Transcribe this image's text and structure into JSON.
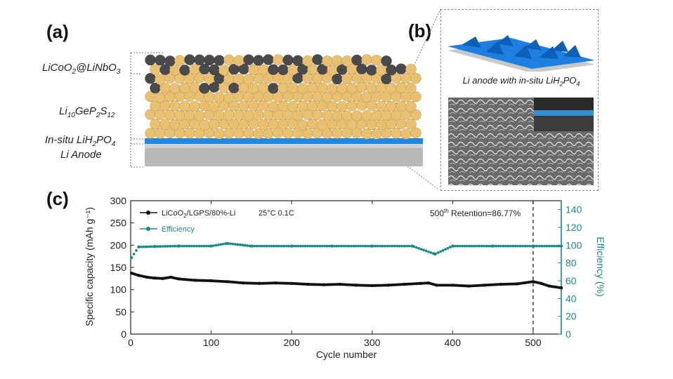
{
  "panels": {
    "a": "(a)",
    "b": "(b)",
    "c": "(c)"
  },
  "schematic_a": {
    "layers": [
      {
        "main": "LiCoO",
        "sub": "2",
        "rest": "@LiNbO",
        "sub2": "3"
      },
      {
        "main": "Li",
        "sub": "10",
        "rest": "GeP",
        "sub2": "2",
        "rest2": "S",
        "sub3": "12"
      },
      {
        "main": "In-situ LiH",
        "sub": "2",
        "rest": "PO",
        "sub2": "4"
      },
      {
        "main": "Li Anode"
      }
    ],
    "colors": {
      "cathode": "#4a4a4a",
      "electrolyte": "#e8c070",
      "interlayer": "#1e88e5",
      "anode": "#b8b8b8"
    }
  },
  "schematic_b": {
    "caption_main": "Li anode with in-situ LiH",
    "caption_sub": "2",
    "caption_rest": "PO",
    "caption_sub2": "4"
  },
  "chart_data": {
    "type": "scatter",
    "title": "",
    "xlabel": "Cycle number",
    "ylabel": "Specific capacity (mAh g⁻¹)",
    "ylabel_right": "Efficiency (%)",
    "xlim": [
      0,
      535
    ],
    "ylim": [
      0,
      300
    ],
    "ylim_right": [
      0,
      150
    ],
    "x_ticks": [
      0,
      100,
      200,
      300,
      400,
      500
    ],
    "y_ticks": [
      0,
      50,
      100,
      150,
      200,
      250,
      300
    ],
    "y_ticks_right": [
      0,
      20,
      40,
      60,
      80,
      100,
      120,
      140
    ],
    "colors": {
      "capacity": "#111111",
      "efficiency": "#1a8a86"
    },
    "annotations": {
      "legend_conditions": "25°C  0.1C",
      "retention_pre": "500",
      "retention_sup": "th",
      "retention_post": " Retention=86.77%",
      "vline_x": 500
    },
    "series": [
      {
        "name": "LiCoO2/LGPS/80%-Li",
        "legend_main": "LiCoO",
        "legend_sub": "2",
        "legend_rest": "/LGPS/80%-Li",
        "axis": "left",
        "x": [
          1,
          10,
          20,
          30,
          40,
          50,
          60,
          80,
          100,
          120,
          140,
          160,
          180,
          200,
          220,
          240,
          260,
          280,
          300,
          320,
          340,
          360,
          370,
          380,
          400,
          420,
          440,
          460,
          480,
          500,
          510,
          520,
          535
        ],
        "y": [
          137,
          132,
          128,
          126,
          125,
          128,
          124,
          121,
          120,
          118,
          115,
          114,
          115,
          114,
          112,
          111,
          112,
          110,
          109,
          110,
          112,
          114,
          115,
          110,
          110,
          108,
          110,
          112,
          113,
          118,
          114,
          108,
          104
        ]
      },
      {
        "name": "Efficiency",
        "axis": "right",
        "x": [
          1,
          10,
          30,
          60,
          100,
          120,
          150,
          200,
          250,
          300,
          350,
          378,
          400,
          450,
          500,
          535
        ],
        "y": [
          86,
          98,
          98.5,
          99,
          99,
          102,
          99,
          99,
          99,
          99,
          99,
          90,
          99,
          99,
          99,
          99
        ]
      }
    ]
  }
}
